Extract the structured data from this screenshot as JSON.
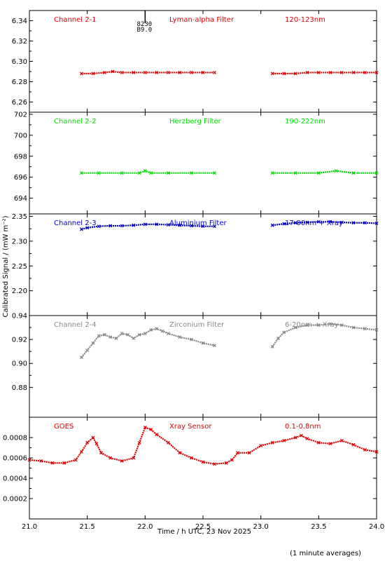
{
  "figure": {
    "ylabel": "Calibrated Signal / (mW m⁻²)",
    "xlabel": "Time / h UTC, 23 Nov 2025",
    "footnote": "(1 minute averages)",
    "marker_text": [
      "8230",
      "B9.0"
    ]
  },
  "chart_data": [
    {
      "type": "scatter",
      "channel": "Channel 2-1",
      "filter": "Lyman-alpha Filter",
      "band": "120-123nm",
      "color": "#e00000",
      "ylim": [
        6.25,
        6.35
      ],
      "yticks": [
        "6.26",
        "6.28",
        "6.30",
        "6.32",
        "6.34"
      ],
      "yticks_values": [
        6.26,
        6.28,
        6.3,
        6.32,
        6.34
      ],
      "x": [
        21.45,
        21.55,
        21.65,
        21.72,
        21.8,
        21.9,
        22.0,
        22.1,
        22.2,
        22.3,
        22.4,
        22.5,
        22.6,
        23.1,
        23.2,
        23.3,
        23.4,
        23.5,
        23.6,
        23.7,
        23.8,
        23.9,
        24.0
      ],
      "values": [
        6.288,
        6.288,
        6.289,
        6.29,
        6.289,
        6.289,
        6.289,
        6.289,
        6.289,
        6.289,
        6.289,
        6.289,
        6.289,
        6.288,
        6.288,
        6.288,
        6.289,
        6.289,
        6.289,
        6.289,
        6.289,
        6.289,
        6.289
      ]
    },
    {
      "type": "scatter",
      "channel": "Channel 2-2",
      "filter": "Herzberg Filter",
      "band": "190-222nm",
      "color": "#00dd00",
      "ylim": [
        692.5,
        702.2
      ],
      "yticks": [
        "694",
        "696",
        "698",
        "700",
        "702"
      ],
      "yticks_values": [
        694,
        696,
        698,
        700,
        702
      ],
      "x": [
        21.45,
        21.6,
        21.8,
        21.95,
        22.0,
        22.05,
        22.2,
        22.4,
        22.6,
        23.1,
        23.3,
        23.5,
        23.65,
        23.8,
        24.0
      ],
      "values": [
        696.4,
        696.4,
        696.4,
        696.4,
        696.6,
        696.4,
        696.4,
        696.4,
        696.4,
        696.4,
        696.4,
        696.4,
        696.6,
        696.4,
        696.4
      ]
    },
    {
      "type": "scatter",
      "channel": "Channel 2-3",
      "filter": "Aluminium Filter",
      "band": "17-80nm + Xray",
      "color": "#0000cc",
      "ylim": [
        2.15,
        2.355
      ],
      "yticks": [
        "2.20",
        "2.25",
        "2.30",
        "2.35"
      ],
      "yticks_values": [
        2.2,
        2.25,
        2.3,
        2.35
      ],
      "x": [
        21.45,
        21.5,
        21.6,
        21.7,
        21.8,
        21.9,
        22.0,
        22.1,
        22.2,
        22.3,
        22.4,
        22.5,
        22.6,
        23.1,
        23.2,
        23.3,
        23.4,
        23.5,
        23.6,
        23.7,
        23.8,
        23.9,
        24.0
      ],
      "values": [
        2.324,
        2.327,
        2.33,
        2.331,
        2.331,
        2.332,
        2.334,
        2.334,
        2.333,
        2.332,
        2.331,
        2.33,
        2.33,
        2.332,
        2.335,
        2.337,
        2.338,
        2.339,
        2.339,
        2.338,
        2.337,
        2.337,
        2.336
      ]
    },
    {
      "type": "scatter",
      "channel": "Channel 2-4",
      "filter": "Zirconium Filter",
      "band": "6-20nm + Xray",
      "color": "#888888",
      "ylim": [
        0.855,
        0.94
      ],
      "yticks": [
        "0.88",
        "0.90",
        "0.92",
        "0.94"
      ],
      "yticks_values": [
        0.88,
        0.9,
        0.92,
        0.94
      ],
      "x": [
        21.45,
        21.5,
        21.55,
        21.6,
        21.65,
        21.7,
        21.75,
        21.8,
        21.85,
        21.9,
        21.95,
        22.0,
        22.05,
        22.1,
        22.15,
        22.2,
        22.3,
        22.4,
        22.5,
        22.6,
        23.1,
        23.15,
        23.2,
        23.3,
        23.4,
        23.5,
        23.6,
        23.7,
        23.8,
        23.9,
        24.0
      ],
      "values": [
        0.905,
        0.911,
        0.917,
        0.923,
        0.924,
        0.922,
        0.921,
        0.925,
        0.924,
        0.921,
        0.924,
        0.925,
        0.928,
        0.929,
        0.927,
        0.925,
        0.922,
        0.92,
        0.917,
        0.915,
        0.914,
        0.921,
        0.926,
        0.93,
        0.932,
        0.932,
        0.933,
        0.932,
        0.93,
        0.929,
        0.928
      ]
    },
    {
      "type": "scatter",
      "channel": "GOES",
      "filter": "Xray Sensor",
      "band": "0.1-0.8nm",
      "color": "#e00000",
      "ylim": [
        0.0,
        0.001
      ],
      "yticks": [
        "0.0002",
        "0.0004",
        "0.0006",
        "0.0008"
      ],
      "yticks_values": [
        0.0002,
        0.0004,
        0.0006,
        0.0008
      ],
      "x": [
        21.0,
        21.1,
        21.2,
        21.3,
        21.4,
        21.45,
        21.5,
        21.55,
        21.58,
        21.62,
        21.7,
        21.8,
        21.9,
        21.95,
        22.0,
        22.05,
        22.1,
        22.2,
        22.3,
        22.4,
        22.5,
        22.6,
        22.7,
        22.75,
        22.8,
        22.9,
        23.0,
        23.1,
        23.2,
        23.3,
        23.35,
        23.4,
        23.5,
        23.6,
        23.7,
        23.8,
        23.9,
        24.0
      ],
      "values": [
        0.00058,
        0.00057,
        0.00055,
        0.00055,
        0.00058,
        0.00066,
        0.00075,
        0.0008,
        0.00074,
        0.00065,
        0.0006,
        0.00057,
        0.0006,
        0.00075,
        0.0009,
        0.00088,
        0.00083,
        0.00075,
        0.00065,
        0.0006,
        0.00056,
        0.00054,
        0.00055,
        0.00058,
        0.00065,
        0.00065,
        0.00072,
        0.00075,
        0.00077,
        0.0008,
        0.00082,
        0.00079,
        0.00075,
        0.00074,
        0.00077,
        0.00073,
        0.00068,
        0.00066
      ]
    }
  ],
  "x_axis": {
    "xlim": [
      21.0,
      24.0
    ],
    "ticks": [
      "21.0",
      "21.5",
      "22.0",
      "22.5",
      "23.0",
      "23.5",
      "24.0"
    ],
    "tick_values": [
      21.0,
      21.5,
      22.0,
      22.5,
      23.0,
      23.5,
      24.0
    ],
    "marker_time": 22.0
  }
}
